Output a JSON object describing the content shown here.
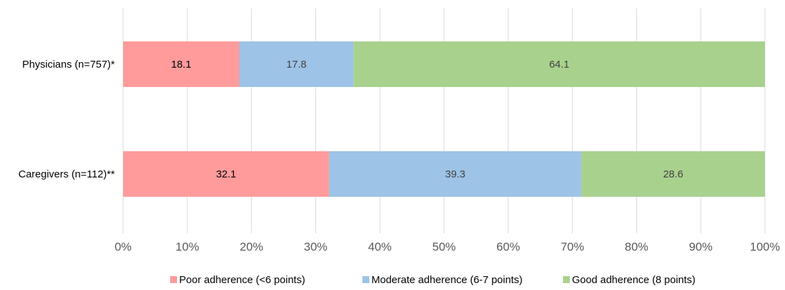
{
  "chart_data": {
    "type": "bar",
    "orientation": "horizontal",
    "stacked": true,
    "categories": [
      "Physicians (n=757)*",
      "Caregivers (n=112)**"
    ],
    "series": [
      {
        "name": "Poor adherence (<6 points)",
        "values": [
          18.1,
          32.1
        ],
        "color": "#ff9b9b",
        "label_color": "#000000"
      },
      {
        "name": "Moderate adherence (6-7 points)",
        "values": [
          17.8,
          39.3
        ],
        "color": "#9dc3e6",
        "label_color": "#404040"
      },
      {
        "name": "Good adherence (8 points)",
        "values": [
          64.1,
          28.6
        ],
        "color": "#a9d18e",
        "label_color": "#404040"
      }
    ],
    "data_labels": [
      [
        "18.1",
        "17.8",
        "64.1"
      ],
      [
        "32.1",
        "39.3",
        "28.6"
      ]
    ],
    "xlim": [
      0,
      100
    ],
    "x_ticks": [
      "0%",
      "10%",
      "20%",
      "30%",
      "40%",
      "50%",
      "60%",
      "70%",
      "80%",
      "90%",
      "100%"
    ],
    "grid": "vertical",
    "legend_position": "bottom"
  }
}
